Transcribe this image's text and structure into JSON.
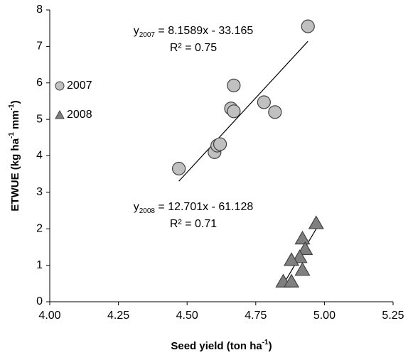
{
  "chart_data": {
    "type": "scatter",
    "x_label": [
      "Seed yield (ton ha",
      "-1",
      ")"
    ],
    "y_label": [
      "ETWUE (kg ha",
      "-1",
      " mm",
      "-1",
      ")"
    ],
    "xlim": [
      4.0,
      5.25
    ],
    "xticks": [
      {
        "value": 4.0,
        "label": "4.00"
      },
      {
        "value": 4.25,
        "label": "4.25"
      },
      {
        "value": 4.5,
        "label": "4.50"
      },
      {
        "value": 4.75,
        "label": "4.75"
      },
      {
        "value": 5.0,
        "label": "5.00"
      },
      {
        "value": 5.25,
        "label": "5.25"
      }
    ],
    "ylim": [
      0,
      8
    ],
    "yticks": [
      0,
      1,
      2,
      3,
      4,
      5,
      6,
      7,
      8
    ],
    "legend": "left",
    "series": [
      {
        "name": "2007",
        "marker": "circle",
        "color": "#c0c0c0",
        "x": [
          4.94,
          4.47,
          4.6,
          4.61,
          4.62,
          4.66,
          4.67,
          4.67,
          4.78,
          4.82
        ],
        "values": [
          7.55,
          3.65,
          4.1,
          4.28,
          4.32,
          5.3,
          5.22,
          5.93,
          5.47,
          5.2
        ],
        "trendline": {
          "slope": 8.1589,
          "intercept": -33.165
        },
        "equation": [
          "y",
          "2007",
          " = 8.1589x - 33.165"
        ],
        "r2": "R² = 0.75"
      },
      {
        "name": "2008",
        "marker": "triangle",
        "color": "#808080",
        "x": [
          4.97,
          4.92,
          4.93,
          4.91,
          4.88,
          4.92,
          4.85,
          4.88
        ],
        "values": [
          2.15,
          1.73,
          1.44,
          1.22,
          1.14,
          0.87,
          0.55,
          0.55
        ],
        "trendline": {
          "slope": 12.701,
          "intercept": -61.128
        },
        "equation": [
          "y",
          "2008",
          " = 12.701x - 61.128"
        ],
        "r2": "R² = 0.71"
      }
    ]
  }
}
